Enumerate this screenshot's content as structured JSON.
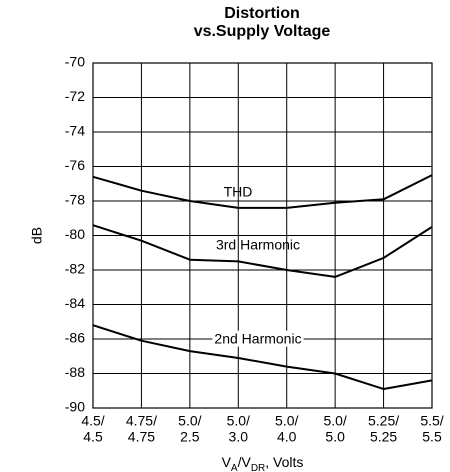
{
  "chart_data": {
    "type": "line",
    "title": [
      "Distortion",
      "vs.Supply Voltage"
    ],
    "ylabel": "dB",
    "xlabel": [
      {
        "text": "V"
      },
      {
        "text": "A",
        "sub": true
      },
      {
        "text": "/V"
      },
      {
        "text": "DR",
        "sub": true
      },
      {
        "text": ", Volts"
      }
    ],
    "categories": [
      [
        "4.5/",
        "4.5"
      ],
      [
        "4.75/",
        "4.75"
      ],
      [
        "5.0/",
        "2.5"
      ],
      [
        "5.0/",
        "3.0"
      ],
      [
        "5.0/",
        "4.0"
      ],
      [
        "5.0/",
        "5.0"
      ],
      [
        "5.25/",
        "5.25"
      ],
      [
        "5.5/",
        "5.5"
      ]
    ],
    "ylim": [
      -90,
      -70
    ],
    "yticks": [
      -90,
      -88,
      -86,
      -84,
      -82,
      -80,
      -78,
      -76,
      -74,
      -72,
      -70
    ],
    "grid": true,
    "series": [
      {
        "name": "THD",
        "color": "#000000",
        "values": [
          -76.6,
          -77.4,
          -78.0,
          -78.4,
          -78.4,
          -78.1,
          -77.9,
          -76.5
        ]
      },
      {
        "name": "3rd Harmonic",
        "color": "#000000",
        "values": [
          -79.4,
          -80.3,
          -81.4,
          -81.5,
          -82.0,
          -82.4,
          -81.3,
          -79.5
        ]
      },
      {
        "name": "2nd Harmonic",
        "color": "#000000",
        "values": [
          -85.2,
          -86.1,
          -86.7,
          -87.1,
          -87.6,
          -88.0,
          -88.9,
          -88.4
        ]
      }
    ]
  }
}
